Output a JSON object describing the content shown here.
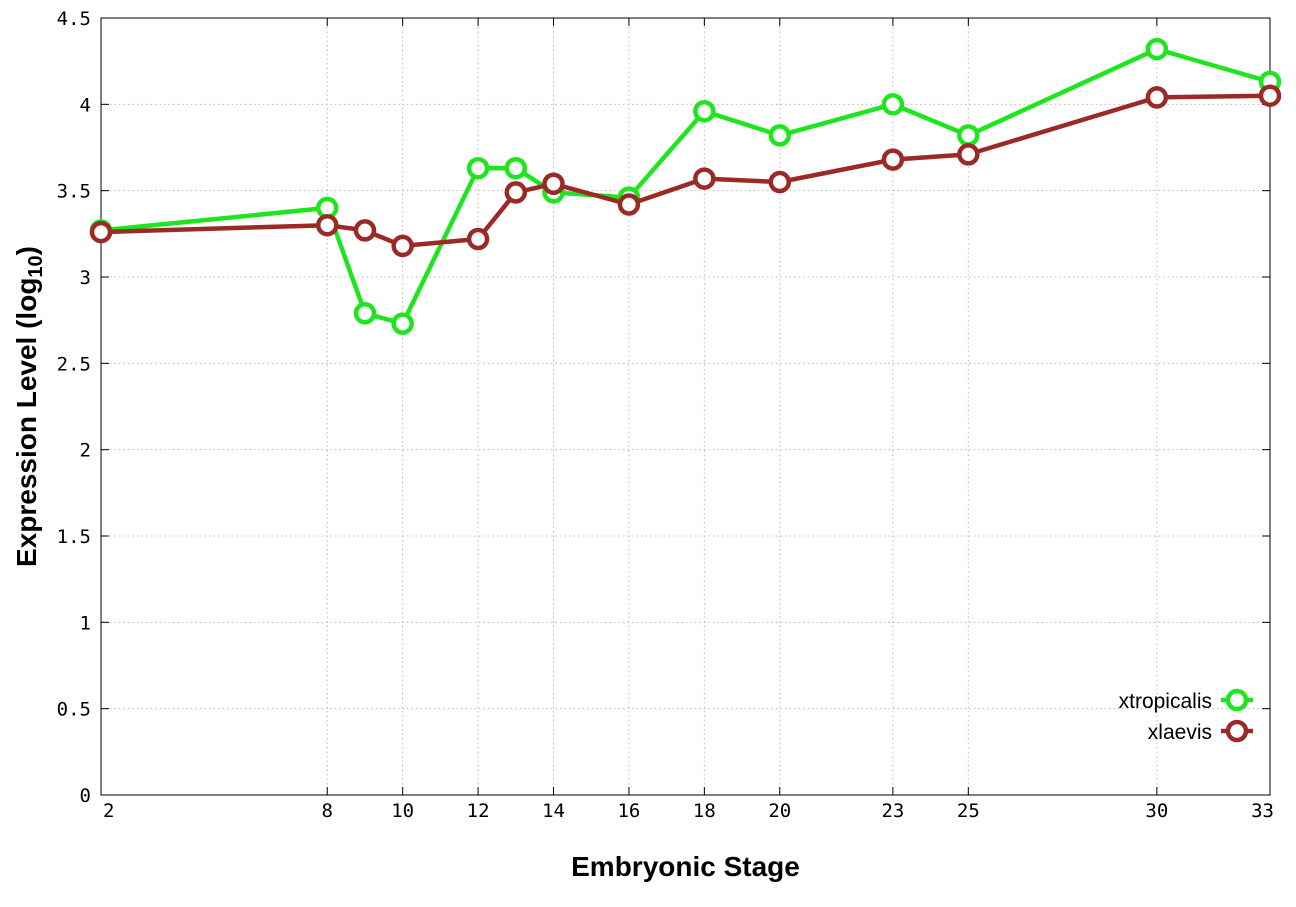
{
  "chart_data": {
    "type": "line",
    "title": "",
    "xlabel": "Embryonic Stage",
    "ylabel": {
      "prefix": "Expression Level (log",
      "subscript": "10",
      "suffix": ")"
    },
    "x": [
      2,
      8,
      9,
      10,
      12,
      13,
      14,
      16,
      18,
      20,
      23,
      25,
      30,
      33
    ],
    "xticks": [
      2,
      8,
      10,
      12,
      14,
      16,
      18,
      20,
      23,
      25,
      30,
      33
    ],
    "xlim": [
      2,
      33
    ],
    "ylim": [
      0,
      4.5
    ],
    "yticks": [
      0,
      0.5,
      1,
      1.5,
      2,
      2.5,
      3,
      3.5,
      4,
      4.5
    ],
    "ytick_labels": [
      "0",
      "0.5",
      "1",
      "1.5",
      "2",
      "2.5",
      "3",
      "3.5",
      "4",
      "4.5"
    ],
    "grid": true,
    "legend_position": "bottom-right",
    "series": [
      {
        "name": "xtropicalis",
        "color": "#1ee61e",
        "values": [
          3.27,
          3.4,
          2.79,
          2.73,
          3.63,
          3.63,
          3.49,
          3.46,
          3.96,
          3.82,
          4.0,
          3.82,
          4.32,
          4.13
        ]
      },
      {
        "name": "xlaevis",
        "color": "#9b2a26",
        "values": [
          3.26,
          3.3,
          3.27,
          3.18,
          3.22,
          3.49,
          3.54,
          3.42,
          3.57,
          3.55,
          3.68,
          3.71,
          4.04,
          4.05
        ]
      }
    ]
  }
}
